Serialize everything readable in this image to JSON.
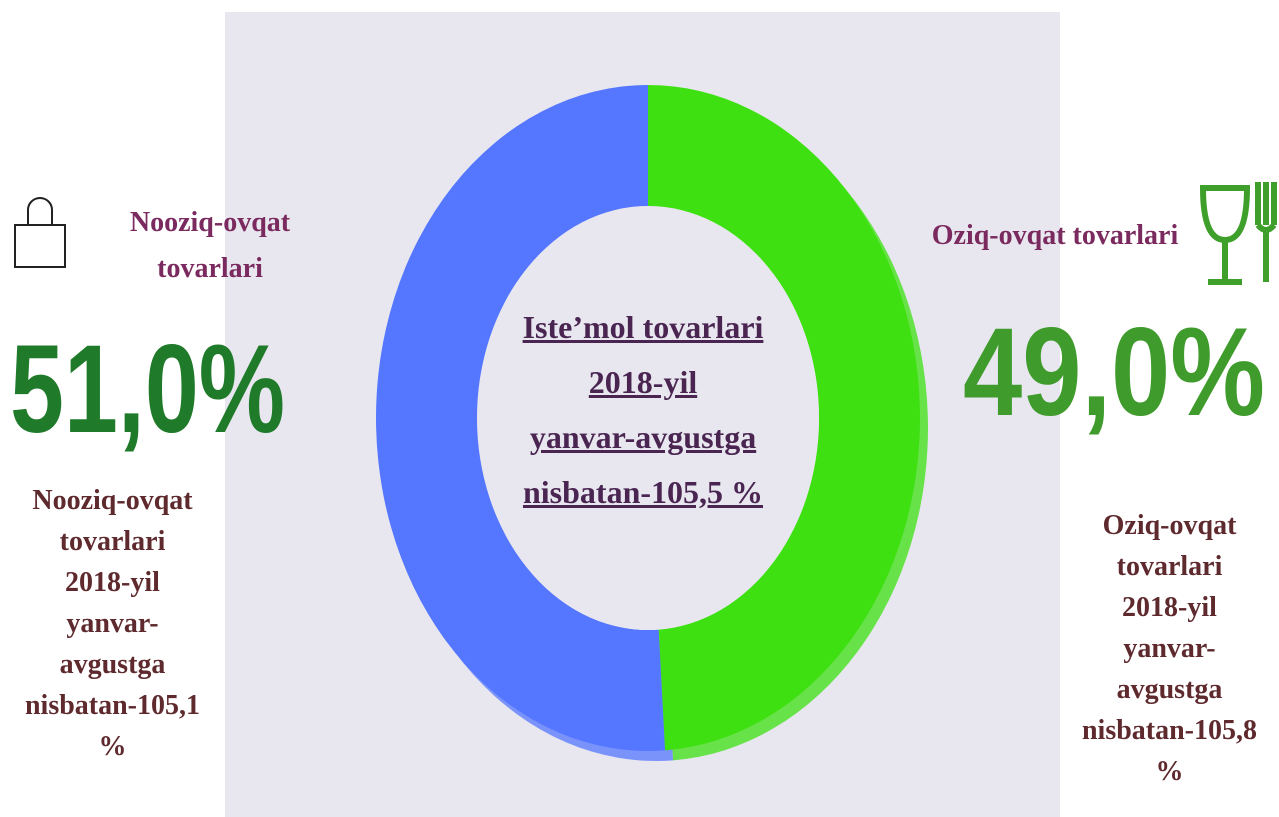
{
  "chart_data": {
    "type": "donut",
    "categories": [
      "Nooziq-ovqat tovarlari",
      "Oziq-ovqat tovarlari"
    ],
    "values": [
      51.0,
      49.0
    ],
    "value_labels": [
      "51,0%",
      "49,0%"
    ],
    "colors": [
      "#5577ff",
      "#3ee012"
    ],
    "center_label": [
      "Iste’mol tovarlari",
      "2018-yil",
      "yanvar-avgustga",
      "nisbatan-105,5 %"
    ],
    "notes": [
      [
        "Nooziq-ovqat",
        "tovarlari",
        "2018-yil",
        "yanvar-",
        "avgustga",
        "nisbatan-105,1",
        "%"
      ],
      [
        "Oziq-ovqat",
        "tovarlari",
        "2018-yil",
        "yanvar-",
        "avgustga",
        "nisbatan-105,8",
        "%"
      ]
    ]
  }
}
